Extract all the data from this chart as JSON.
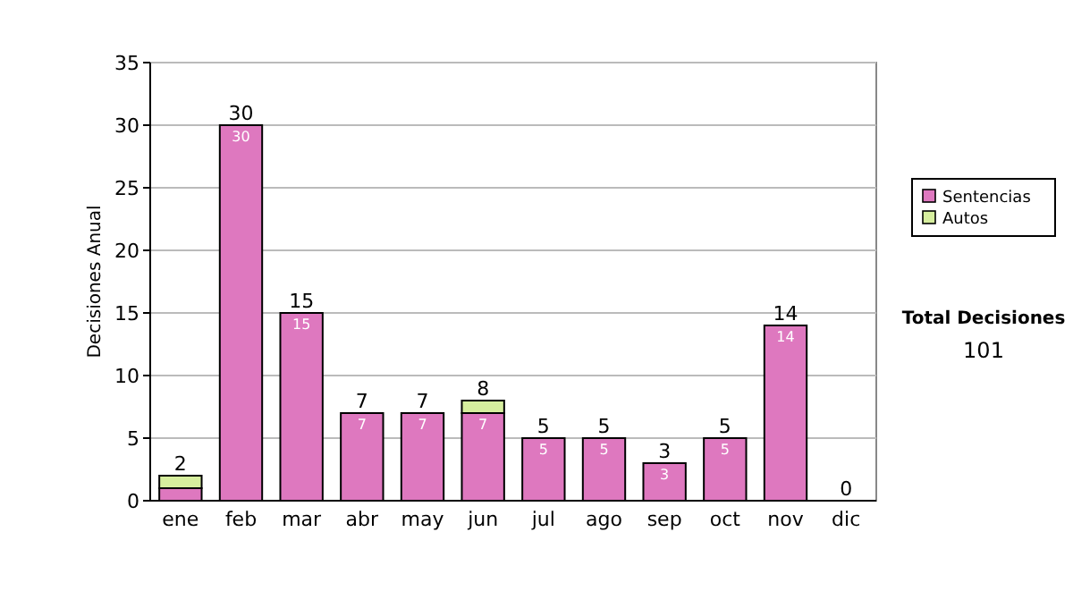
{
  "chart_data": {
    "type": "bar",
    "stacked": true,
    "ylabel": "Decisiones Anual",
    "categories": [
      "ene",
      "feb",
      "mar",
      "abr",
      "may",
      "jun",
      "jul",
      "ago",
      "sep",
      "oct",
      "nov",
      "dic"
    ],
    "series": [
      {
        "name": "Sentencias",
        "color": "#de78bf",
        "values": [
          1,
          30,
          15,
          7,
          7,
          7,
          5,
          5,
          3,
          5,
          14,
          0
        ],
        "value_labels": [
          null,
          "30",
          "15",
          "7",
          "7",
          "7",
          "5",
          "5",
          "3",
          "5",
          "14",
          null
        ]
      },
      {
        "name": "Autos",
        "color": "#d6ee9e",
        "values": [
          1,
          0,
          0,
          0,
          0,
          1,
          0,
          0,
          0,
          0,
          0,
          0
        ]
      }
    ],
    "totals": [
      "2",
      "30",
      "15",
      "7",
      "7",
      "8",
      "5",
      "5",
      "3",
      "5",
      "14",
      "0"
    ],
    "ylim": [
      0,
      35
    ],
    "yticks": [
      0,
      5,
      10,
      15,
      20,
      25,
      30,
      35
    ],
    "grid": "y",
    "legend": "right",
    "annotations": [
      "Total Decisiones",
      "101"
    ]
  }
}
